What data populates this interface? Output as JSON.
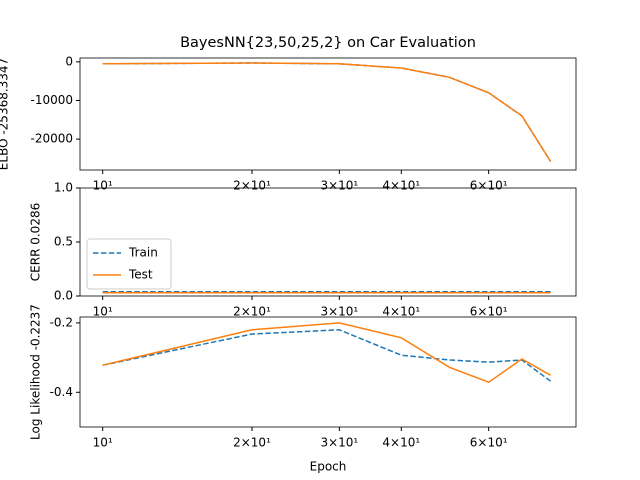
{
  "chart_data": [
    {
      "type": "line",
      "title": "BayesNN{23,50,25,2} on Car Evaluation",
      "ylabel": "ELBO -25368.3347",
      "x": [
        10,
        20,
        30,
        40,
        50,
        60,
        70,
        80
      ],
      "log_x": true,
      "xlim": [
        9,
        90
      ],
      "ylim": [
        -28000,
        1000
      ],
      "xticks": [
        {
          "value": 10,
          "label": "10¹"
        },
        {
          "value": 20,
          "label": "2×10¹"
        },
        {
          "value": 30,
          "label": "3×10¹"
        },
        {
          "value": 40,
          "label": "4×10¹"
        },
        {
          "value": 60,
          "label": "6×10¹"
        }
      ],
      "yticks": [
        0,
        -10000,
        -20000
      ],
      "series": [
        {
          "name": "Train",
          "color": "#1f77b4",
          "linestyle": "dashed",
          "values": [
            -500,
            -300,
            -500,
            -1600,
            -4000,
            -8000,
            -14000,
            -25800
          ]
        },
        {
          "name": "Test",
          "color": "#ff7f0e",
          "linestyle": "solid",
          "values": [
            -500,
            -300,
            -500,
            -1600,
            -4000,
            -8000,
            -14000,
            -25800
          ]
        }
      ]
    },
    {
      "type": "line",
      "ylabel": "CERR 0.0286",
      "x": [
        10,
        20,
        30,
        40,
        50,
        60,
        70,
        80
      ],
      "log_x": true,
      "xlim": [
        9,
        90
      ],
      "ylim": [
        0,
        1
      ],
      "xticks": [
        {
          "value": 10,
          "label": "10¹"
        },
        {
          "value": 20,
          "label": "2×10¹"
        },
        {
          "value": 30,
          "label": "3×10¹"
        },
        {
          "value": 40,
          "label": "4×10¹"
        },
        {
          "value": 60,
          "label": "6×10¹"
        }
      ],
      "yticks": [
        {
          "value": 0,
          "label": "0.0"
        },
        {
          "value": 0.5,
          "label": "0.5"
        },
        {
          "value": 1,
          "label": "1.0"
        }
      ],
      "legend": "lower left",
      "series": [
        {
          "name": "Train",
          "color": "#1f77b4",
          "linestyle": "dashed",
          "values": [
            0.04,
            0.04,
            0.04,
            0.04,
            0.04,
            0.04,
            0.04,
            0.04
          ]
        },
        {
          "name": "Test",
          "color": "#ff7f0e",
          "linestyle": "solid",
          "values": [
            0.03,
            0.03,
            0.03,
            0.03,
            0.03,
            0.03,
            0.03,
            0.03
          ]
        }
      ]
    },
    {
      "type": "line",
      "ylabel": "Log Likelihood -0.2237",
      "xlabel": "Epoch",
      "x": [
        10,
        20,
        30,
        40,
        50,
        60,
        70,
        80
      ],
      "log_x": true,
      "xlim": [
        9,
        90
      ],
      "ylim": [
        -0.5,
        -0.183
      ],
      "xticks": [
        {
          "value": 10,
          "label": "10¹"
        },
        {
          "value": 20,
          "label": "2×10¹"
        },
        {
          "value": 30,
          "label": "3×10¹"
        },
        {
          "value": 40,
          "label": "4×10¹"
        },
        {
          "value": 60,
          "label": "6×10¹"
        }
      ],
      "yticks": [
        -0.2,
        -0.4
      ],
      "series": [
        {
          "name": "Train",
          "color": "#1f77b4",
          "linestyle": "dashed",
          "values": [
            -0.322,
            -0.232,
            -0.22,
            -0.293,
            -0.307,
            -0.313,
            -0.307,
            -0.368
          ]
        },
        {
          "name": "Test",
          "color": "#ff7f0e",
          "linestyle": "solid",
          "values": [
            -0.322,
            -0.22,
            -0.2,
            -0.243,
            -0.328,
            -0.371,
            -0.304,
            -0.351
          ]
        }
      ]
    }
  ]
}
